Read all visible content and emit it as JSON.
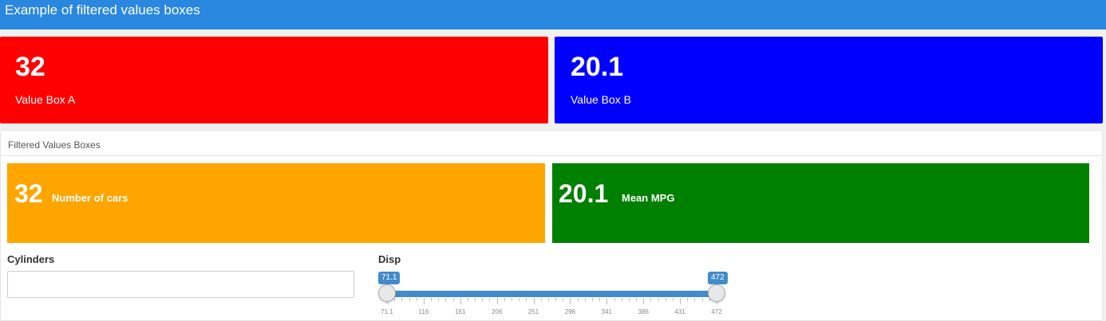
{
  "navbar": {
    "title": "Example of filtered values boxes"
  },
  "value_boxes": [
    {
      "value": "32",
      "caption": "Value Box A",
      "color": "#ff0000"
    },
    {
      "value": "20.1",
      "caption": "Value Box B",
      "color": "#0000ff"
    }
  ],
  "panel": {
    "title": "Filtered Values Boxes",
    "boxes": [
      {
        "value": "32",
        "caption": "Number of cars",
        "color": "#ffa500"
      },
      {
        "value": "20.1",
        "caption": "Mean MPG",
        "color": "#008000"
      }
    ]
  },
  "cylinders": {
    "label": "Cylinders",
    "value": ""
  },
  "disp": {
    "label": "Disp",
    "min": 71.1,
    "max": 472,
    "selected_min_label": "71.1",
    "selected_max_label": "472",
    "tick_labels": [
      "71.1",
      "116",
      "161",
      "206",
      "251",
      "296",
      "341",
      "386",
      "431",
      "472"
    ]
  },
  "colors": {
    "navbar": "#2a87e0",
    "slider": "#428bca"
  }
}
